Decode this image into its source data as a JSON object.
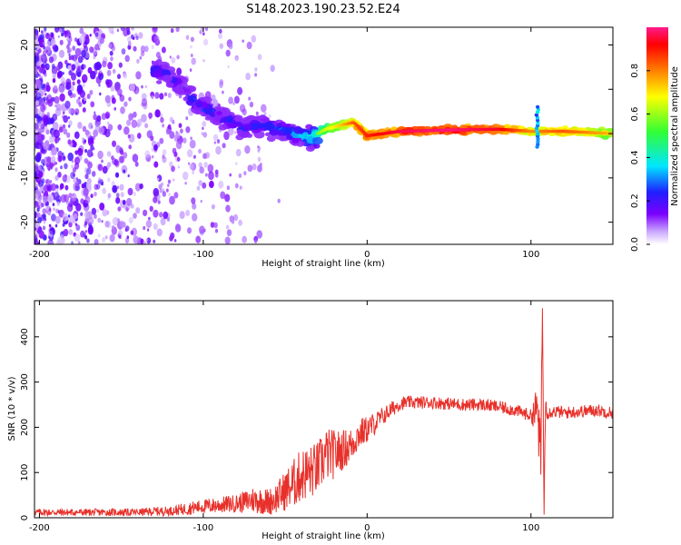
{
  "title": "S148.2023.190.23.52.E24",
  "chart_data": [
    {
      "type": "heatmap",
      "xlabel": "Height of straight line (km)",
      "ylabel": "Frequency (Hz)",
      "xlim": [
        -203,
        150
      ],
      "ylim": [
        -25,
        24
      ],
      "xticks": [
        -200,
        -100,
        0,
        100
      ],
      "yticks": [
        -20,
        -10,
        0,
        10,
        20
      ],
      "colorbar": {
        "label": "Normalized spectral amplitude",
        "range": [
          0,
          1
        ],
        "ticks": [
          "0.0",
          "0.2",
          "0.4",
          "0.6",
          "0.8"
        ],
        "tick_values": [
          0,
          0.2,
          0.4,
          0.6,
          0.8
        ],
        "colormap": [
          "#ffffff",
          "#c9a6ff",
          "#7b00ff",
          "#1f1fff",
          "#00e6ff",
          "#33ff33",
          "#ffff00",
          "#ff8000",
          "#ff0000",
          "#ff1a8c"
        ]
      },
      "ridge_points": [
        {
          "x": -125,
          "y": 14,
          "v": 0.28
        },
        {
          "x": -115,
          "y": 11,
          "v": 0.26
        },
        {
          "x": -105,
          "y": 7,
          "v": 0.3
        },
        {
          "x": -95,
          "y": 5,
          "v": 0.28
        },
        {
          "x": -85,
          "y": 3,
          "v": 0.27
        },
        {
          "x": -75,
          "y": 1,
          "v": 0.28
        },
        {
          "x": -65,
          "y": 2,
          "v": 0.3
        },
        {
          "x": -55,
          "y": 1,
          "v": 0.32
        },
        {
          "x": -45,
          "y": 0,
          "v": 0.35
        },
        {
          "x": -35,
          "y": -1,
          "v": 0.45
        },
        {
          "x": -25,
          "y": 1,
          "v": 0.6
        },
        {
          "x": -15,
          "y": 2,
          "v": 0.7
        },
        {
          "x": -8,
          "y": 2.5,
          "v": 0.8
        },
        {
          "x": 0,
          "y": -0.5,
          "v": 0.85
        },
        {
          "x": 20,
          "y": 0.5,
          "v": 0.92
        },
        {
          "x": 50,
          "y": 0.8,
          "v": 0.95
        },
        {
          "x": 80,
          "y": 1,
          "v": 0.9
        },
        {
          "x": 100,
          "y": 0.5,
          "v": 0.75
        },
        {
          "x": 120,
          "y": 0.5,
          "v": 0.8
        },
        {
          "x": 150,
          "y": 0,
          "v": 0.7
        }
      ]
    },
    {
      "type": "line",
      "xlabel": "Height of straight line (km)",
      "ylabel": "SNR (10 * v/v)",
      "xlim": [
        -203,
        150
      ],
      "ylim": [
        0,
        480
      ],
      "xticks": [
        -200,
        -100,
        0,
        100
      ],
      "yticks": [
        0,
        100,
        200,
        300,
        400
      ],
      "color": "#e8302a",
      "series": [
        {
          "x": [
            -203,
            -190,
            -180,
            -170,
            -160,
            -150,
            -140,
            -130,
            -120,
            -110,
            -100,
            -90,
            -80,
            -75,
            -70,
            -65,
            -60,
            -55,
            -50,
            -45,
            -40,
            -35,
            -30,
            -25,
            -20,
            -15,
            -10,
            -5,
            0,
            5,
            10,
            15,
            20,
            25,
            30,
            35,
            40,
            50,
            60,
            70,
            80,
            90,
            95,
            100,
            104,
            106,
            107,
            108,
            109,
            110,
            112,
            115,
            120,
            130,
            140,
            150
          ],
          "y": [
            12,
            12,
            12,
            12,
            12,
            12,
            12,
            14,
            15,
            20,
            25,
            28,
            32,
            35,
            40,
            38,
            35,
            45,
            60,
            75,
            95,
            100,
            110,
            140,
            140,
            150,
            160,
            185,
            195,
            210,
            225,
            240,
            252,
            255,
            255,
            255,
            255,
            252,
            250,
            250,
            245,
            238,
            232,
            226,
            240,
            120,
            470,
            10,
            300,
            230,
            235,
            235,
            232,
            235,
            238,
            232
          ],
          "noise": [
            8,
            8,
            8,
            8,
            8,
            8,
            8,
            10,
            10,
            14,
            16,
            18,
            20,
            24,
            30,
            30,
            30,
            35,
            45,
            55,
            60,
            60,
            60,
            60,
            55,
            45,
            40,
            35,
            30,
            25,
            20,
            18,
            15,
            14,
            14,
            14,
            14,
            14,
            14,
            14,
            14,
            14,
            14,
            14,
            60,
            80,
            20,
            20,
            60,
            14,
            14,
            14,
            14,
            14,
            14,
            14
          ]
        }
      ]
    }
  ]
}
